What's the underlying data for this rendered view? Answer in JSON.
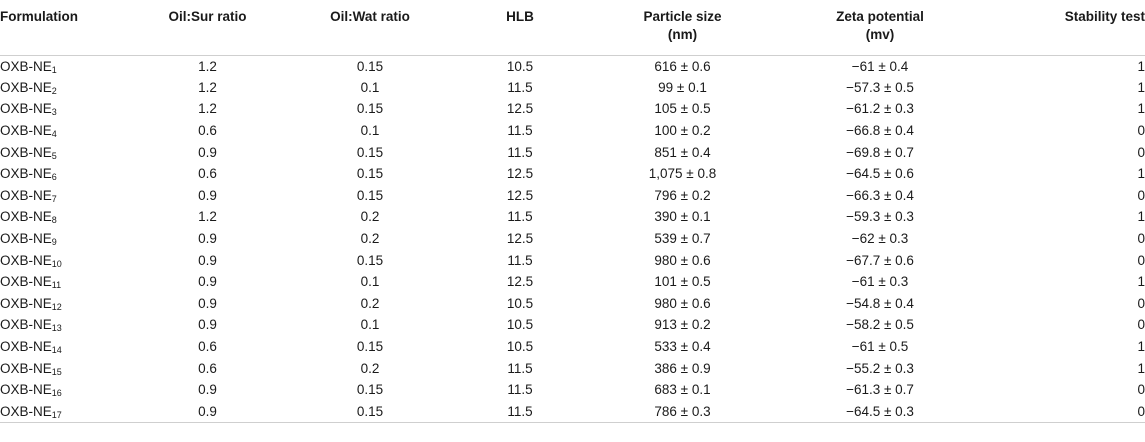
{
  "headers": [
    {
      "line1": "Formulation",
      "line2": ""
    },
    {
      "line1": "Oil:Sur ratio",
      "line2": ""
    },
    {
      "line1": "Oil:Wat ratio",
      "line2": ""
    },
    {
      "line1": "HLB",
      "line2": ""
    },
    {
      "line1": "Particle size",
      "line2": "(nm)"
    },
    {
      "line1": "Zeta potential",
      "line2": "(mv)"
    },
    {
      "line1": "Stability test",
      "line2": ""
    }
  ],
  "rows": [
    {
      "name": "OXB-NE",
      "sub": "1",
      "oil_sur": "1.2",
      "oil_wat": "0.15",
      "hlb": "10.5",
      "size": "616 ± 0.6",
      "zeta": "−61 ± 0.4",
      "stab": "1"
    },
    {
      "name": "OXB-NE",
      "sub": "2",
      "oil_sur": "1.2",
      "oil_wat": "0.1",
      "hlb": "11.5",
      "size": "99 ± 0.1",
      "zeta": "−57.3 ± 0.5",
      "stab": "1"
    },
    {
      "name": "OXB-NE",
      "sub": "3",
      "oil_sur": "1.2",
      "oil_wat": "0.15",
      "hlb": "12.5",
      "size": "105 ± 0.5",
      "zeta": "−61.2 ± 0.3",
      "stab": "1"
    },
    {
      "name": "OXB-NE",
      "sub": "4",
      "oil_sur": "0.6",
      "oil_wat": "0.1",
      "hlb": "11.5",
      "size": "100 ± 0.2",
      "zeta": "−66.8 ± 0.4",
      "stab": "0"
    },
    {
      "name": "OXB-NE",
      "sub": "5",
      "oil_sur": "0.9",
      "oil_wat": "0.15",
      "hlb": "11.5",
      "size": "851 ± 0.4",
      "zeta": "−69.8 ± 0.7",
      "stab": "0"
    },
    {
      "name": "OXB-NE",
      "sub": "6",
      "oil_sur": "0.6",
      "oil_wat": "0.15",
      "hlb": "12.5",
      "size": "1,075 ± 0.8",
      "zeta": "−64.5 ± 0.6",
      "stab": "1"
    },
    {
      "name": "OXB-NE",
      "sub": "7",
      "oil_sur": "0.9",
      "oil_wat": "0.15",
      "hlb": "12.5",
      "size": "796 ± 0.2",
      "zeta": "−66.3 ± 0.4",
      "stab": "0"
    },
    {
      "name": "OXB-NE",
      "sub": "8",
      "oil_sur": "1.2",
      "oil_wat": "0.2",
      "hlb": "11.5",
      "size": "390 ± 0.1",
      "zeta": "−59.3 ± 0.3",
      "stab": "1"
    },
    {
      "name": "OXB-NE",
      "sub": "9",
      "oil_sur": "0.9",
      "oil_wat": "0.2",
      "hlb": "12.5",
      "size": "539 ± 0.7",
      "zeta": "−62 ± 0.3",
      "stab": "0"
    },
    {
      "name": "OXB-NE",
      "sub": "10",
      "oil_sur": "0.9",
      "oil_wat": "0.15",
      "hlb": "11.5",
      "size": "980 ± 0.6",
      "zeta": "−67.7 ± 0.6",
      "stab": "0"
    },
    {
      "name": "OXB-NE",
      "sub": "11",
      "oil_sur": "0.9",
      "oil_wat": "0.1",
      "hlb": "12.5",
      "size": "101 ± 0.5",
      "zeta": "−61 ± 0.3",
      "stab": "1"
    },
    {
      "name": "OXB-NE",
      "sub": "12",
      "oil_sur": "0.9",
      "oil_wat": "0.2",
      "hlb": "10.5",
      "size": "980 ± 0.6",
      "zeta": "−54.8 ± 0.4",
      "stab": "0"
    },
    {
      "name": "OXB-NE",
      "sub": "13",
      "oil_sur": "0.9",
      "oil_wat": "0.1",
      "hlb": "10.5",
      "size": "913 ± 0.2",
      "zeta": "−58.2 ± 0.5",
      "stab": "0"
    },
    {
      "name": "OXB-NE",
      "sub": "14",
      "oil_sur": "0.6",
      "oil_wat": "0.15",
      "hlb": "10.5",
      "size": "533 ± 0.4",
      "zeta": "−61 ± 0.5",
      "stab": "1"
    },
    {
      "name": "OXB-NE",
      "sub": "15",
      "oil_sur": "0.6",
      "oil_wat": "0.2",
      "hlb": "11.5",
      "size": "386 ± 0.9",
      "zeta": "−55.2 ± 0.3",
      "stab": "1"
    },
    {
      "name": "OXB-NE",
      "sub": "16",
      "oil_sur": "0.9",
      "oil_wat": "0.15",
      "hlb": "11.5",
      "size": "683 ± 0.1",
      "zeta": "−61.3 ± 0.7",
      "stab": "0"
    },
    {
      "name": "OXB-NE",
      "sub": "17",
      "oil_sur": "0.9",
      "oil_wat": "0.15",
      "hlb": "11.5",
      "size": "786 ± 0.3",
      "zeta": "−64.5 ± 0.3",
      "stab": "0"
    }
  ]
}
